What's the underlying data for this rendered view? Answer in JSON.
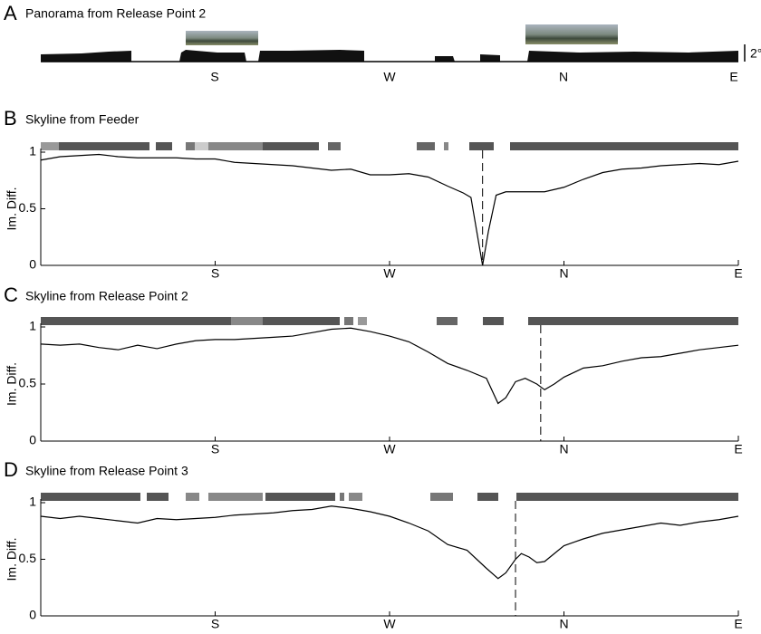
{
  "panel_a": {
    "letter": "A",
    "title": "Panorama from Release Point 2",
    "scale_label": "2°",
    "directions": [
      "S",
      "W",
      "N",
      "E"
    ]
  },
  "chart_data": [
    {
      "type": "line",
      "letter": "B",
      "title": "Skyline from Feeder",
      "y_label": "Im. Diff.",
      "color": "#000000",
      "x": [
        0,
        10,
        20,
        30,
        40,
        50,
        60,
        70,
        80,
        90,
        100,
        110,
        120,
        130,
        140,
        150,
        160,
        170,
        180,
        190,
        200,
        210,
        218,
        222,
        225,
        228,
        231,
        235,
        240,
        250,
        260,
        270,
        280,
        290,
        300,
        310,
        320,
        330,
        340,
        350,
        360
      ],
      "values": [
        0.93,
        0.96,
        0.97,
        0.98,
        0.96,
        0.95,
        0.95,
        0.95,
        0.94,
        0.94,
        0.91,
        0.9,
        0.89,
        0.88,
        0.86,
        0.84,
        0.85,
        0.8,
        0.8,
        0.81,
        0.78,
        0.7,
        0.64,
        0.6,
        0.3,
        0,
        0.3,
        0.62,
        0.65,
        0.65,
        0.65,
        0.69,
        0.76,
        0.82,
        0.85,
        0.86,
        0.88,
        0.89,
        0.9,
        0.89,
        0.92
      ],
      "reference_x": 228,
      "xlim": [
        0,
        360
      ],
      "ylim": [
        0,
        1
      ],
      "xticks": [
        {
          "value": 90,
          "label": "S"
        },
        {
          "value": 180,
          "label": "W"
        },
        {
          "value": 270,
          "label": "N"
        },
        {
          "value": 360,
          "label": "E"
        }
      ],
      "yticks": [
        0,
        0.5,
        1
      ]
    },
    {
      "type": "line",
      "letter": "C",
      "title": "Skyline from Release Point 2",
      "y_label": "Im. Diff.",
      "color": "#000000",
      "x": [
        0,
        10,
        20,
        30,
        40,
        50,
        60,
        70,
        80,
        90,
        100,
        110,
        120,
        130,
        140,
        150,
        160,
        170,
        180,
        190,
        200,
        210,
        220,
        230,
        236,
        240,
        245,
        250,
        256,
        260,
        265,
        270,
        280,
        290,
        300,
        310,
        320,
        330,
        340,
        350,
        360
      ],
      "values": [
        0.85,
        0.84,
        0.85,
        0.82,
        0.8,
        0.84,
        0.81,
        0.85,
        0.88,
        0.89,
        0.89,
        0.9,
        0.91,
        0.92,
        0.95,
        0.98,
        0.99,
        0.96,
        0.92,
        0.87,
        0.78,
        0.68,
        0.62,
        0.55,
        0.33,
        0.38,
        0.52,
        0.55,
        0.5,
        0.45,
        0.5,
        0.56,
        0.64,
        0.66,
        0.7,
        0.73,
        0.74,
        0.77,
        0.8,
        0.82,
        0.84
      ],
      "reference_x": 258,
      "xlim": [
        0,
        360
      ],
      "ylim": [
        0,
        1
      ],
      "xticks": [
        {
          "value": 90,
          "label": "S"
        },
        {
          "value": 180,
          "label": "W"
        },
        {
          "value": 270,
          "label": "N"
        },
        {
          "value": 360,
          "label": "E"
        }
      ],
      "yticks": [
        0,
        0.5,
        1
      ]
    },
    {
      "type": "line",
      "letter": "D",
      "title": "Skyline from Release Point 3",
      "y_label": "Im. Diff.",
      "color": "#000000",
      "x": [
        0,
        10,
        20,
        30,
        40,
        50,
        60,
        70,
        80,
        90,
        100,
        110,
        120,
        130,
        140,
        150,
        160,
        170,
        180,
        190,
        200,
        210,
        220,
        230,
        236,
        240,
        245,
        248,
        252,
        256,
        260,
        265,
        270,
        280,
        290,
        300,
        310,
        320,
        330,
        340,
        350,
        360
      ],
      "values": [
        0.88,
        0.86,
        0.88,
        0.86,
        0.84,
        0.82,
        0.86,
        0.85,
        0.86,
        0.87,
        0.89,
        0.9,
        0.91,
        0.93,
        0.94,
        0.97,
        0.95,
        0.92,
        0.88,
        0.82,
        0.75,
        0.63,
        0.58,
        0.42,
        0.33,
        0.38,
        0.5,
        0.55,
        0.52,
        0.47,
        0.48,
        0.55,
        0.62,
        0.68,
        0.73,
        0.76,
        0.79,
        0.82,
        0.8,
        0.83,
        0.85,
        0.88
      ],
      "reference_x": 245,
      "xlim": [
        0,
        360
      ],
      "ylim": [
        0,
        1
      ],
      "xticks": [
        {
          "value": 90,
          "label": "S"
        },
        {
          "value": 180,
          "label": "W"
        },
        {
          "value": 270,
          "label": "N"
        },
        {
          "value": 360,
          "label": "E"
        }
      ],
      "yticks": [
        0,
        0.5,
        1
      ]
    }
  ]
}
